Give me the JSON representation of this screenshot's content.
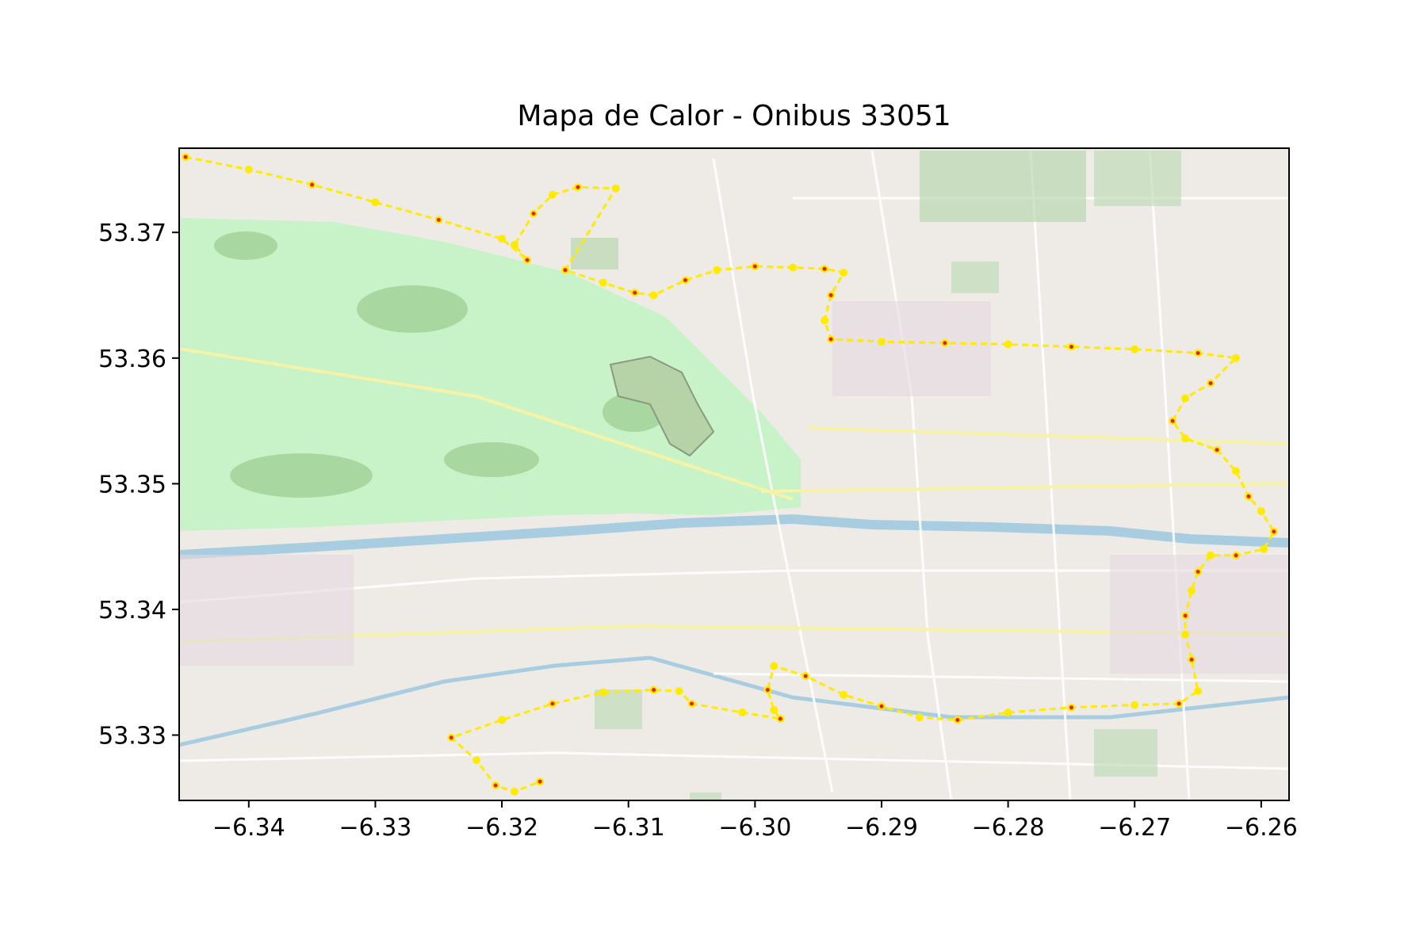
{
  "chart_data": {
    "type": "scatter",
    "title": "Mapa de Calor - Onibus 33051",
    "xlabel": "",
    "ylabel": "",
    "xlim": [
      -6.3455,
      -6.2578
    ],
    "ylim": [
      53.3248,
      53.3767
    ],
    "x_ticks": [
      -6.34,
      -6.33,
      -6.32,
      -6.31,
      -6.3,
      -6.29,
      -6.28,
      -6.27,
      -6.26
    ],
    "x_tick_labels": [
      "−6.34",
      "−6.33",
      "−6.32",
      "−6.31",
      "−6.30",
      "−6.29",
      "−6.28",
      "−6.27",
      "−6.26"
    ],
    "y_ticks": [
      53.33,
      53.34,
      53.35,
      53.36,
      53.37
    ],
    "y_tick_labels": [
      "53.33",
      "53.34",
      "53.35",
      "53.36",
      "53.37"
    ],
    "grid": false,
    "basemap": "street map",
    "route_color": "#ffeb00",
    "highlight_color": "#e8201c",
    "series": [
      {
        "values": [
          [
            -6.345,
            53.376
          ],
          [
            -6.34,
            53.375
          ],
          [
            -6.335,
            53.3738
          ],
          [
            -6.33,
            53.3724
          ],
          [
            -6.325,
            53.371
          ],
          [
            -6.32,
            53.3695
          ],
          [
            -6.318,
            53.3678
          ],
          [
            -6.319,
            53.369
          ],
          [
            -6.3175,
            53.3715
          ],
          [
            -6.316,
            53.373
          ],
          [
            -6.314,
            53.3736
          ],
          [
            -6.311,
            53.3735
          ],
          [
            -6.315,
            53.367
          ],
          [
            -6.312,
            53.366
          ],
          [
            -6.3095,
            53.3652
          ],
          [
            -6.308,
            53.365
          ],
          [
            -6.3055,
            53.3662
          ],
          [
            -6.303,
            53.367
          ],
          [
            -6.3,
            53.3673
          ],
          [
            -6.297,
            53.3672
          ],
          [
            -6.2945,
            53.3671
          ],
          [
            -6.293,
            53.3668
          ],
          [
            -6.294,
            53.365
          ],
          [
            -6.2945,
            53.363
          ],
          [
            -6.294,
            53.3615
          ],
          [
            -6.29,
            53.3613
          ],
          [
            -6.285,
            53.3612
          ],
          [
            -6.28,
            53.3611
          ],
          [
            -6.275,
            53.3609
          ],
          [
            -6.27,
            53.3607
          ],
          [
            -6.265,
            53.3604
          ],
          [
            -6.262,
            53.36
          ],
          [
            -6.264,
            53.358
          ],
          [
            -6.266,
            53.3568
          ],
          [
            -6.267,
            53.355
          ],
          [
            -6.266,
            53.3536
          ],
          [
            -6.2635,
            53.3527
          ],
          [
            -6.262,
            53.351
          ],
          [
            -6.261,
            53.349
          ],
          [
            -6.26,
            53.3478
          ],
          [
            -6.259,
            53.3462
          ],
          [
            -6.2598,
            53.3448
          ],
          [
            -6.262,
            53.3443
          ],
          [
            -6.264,
            53.3443
          ],
          [
            -6.265,
            53.343
          ],
          [
            -6.2655,
            53.3415
          ],
          [
            -6.266,
            53.3395
          ],
          [
            -6.266,
            53.338
          ],
          [
            -6.2655,
            53.336
          ],
          [
            -6.265,
            53.3335
          ],
          [
            -6.2665,
            53.3325
          ],
          [
            -6.27,
            53.3324
          ],
          [
            -6.275,
            53.3322
          ],
          [
            -6.28,
            53.3318
          ],
          [
            -6.284,
            53.3312
          ],
          [
            -6.287,
            53.3314
          ],
          [
            -6.29,
            53.3323
          ],
          [
            -6.293,
            53.3332
          ],
          [
            -6.296,
            53.3347
          ],
          [
            -6.2985,
            53.3355
          ],
          [
            -6.299,
            53.3336
          ],
          [
            -6.2985,
            53.332
          ],
          [
            -6.298,
            53.3313
          ],
          [
            -6.301,
            53.3318
          ],
          [
            -6.305,
            53.3325
          ],
          [
            -6.306,
            53.3335
          ],
          [
            -6.308,
            53.3336
          ],
          [
            -6.312,
            53.3334
          ],
          [
            -6.316,
            53.3325
          ],
          [
            -6.32,
            53.3312
          ],
          [
            -6.324,
            53.3298
          ],
          [
            -6.322,
            53.328
          ],
          [
            -6.3205,
            53.326
          ],
          [
            -6.319,
            53.3255
          ],
          [
            -6.317,
            53.3263
          ]
        ]
      }
    ]
  }
}
